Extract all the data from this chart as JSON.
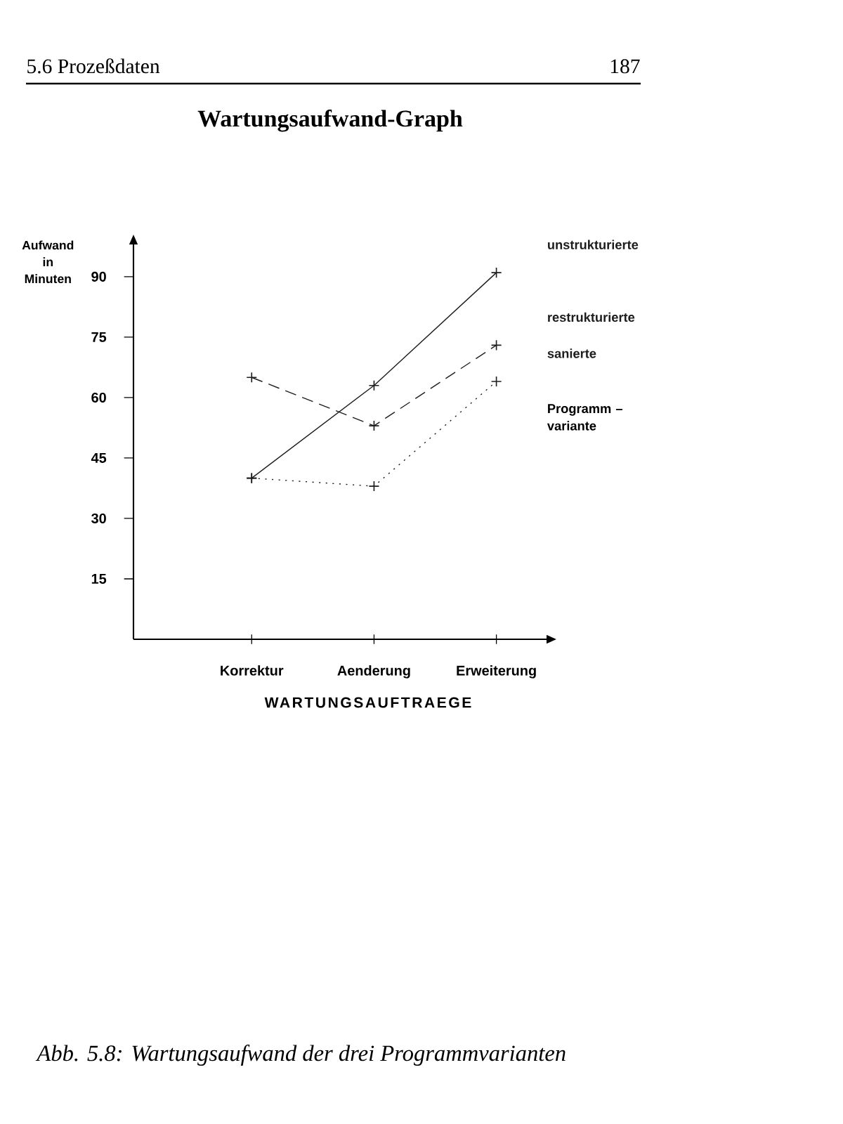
{
  "chart_data": {
    "type": "line",
    "title": "Wartungsaufwand-Graph",
    "xlabel": "WARTUNGSAUFTRAEGE",
    "ylabel": "Aufwand in Minuten",
    "legend_title": "Programm – variante",
    "categories": [
      "Korrektur",
      "Aenderung",
      "Erweiterung"
    ],
    "series": [
      {
        "name": "unstrukturierte",
        "color": "#1e1e1e",
        "line_style": "solid",
        "values": [
          40,
          63,
          91
        ]
      },
      {
        "name": "restrukturierte",
        "color": "#1e1e1e",
        "line_style": "dashed",
        "values": [
          65,
          53,
          73
        ]
      },
      {
        "name": "sanierte",
        "color": "#1e1e1e",
        "line_style": "dotted",
        "values": [
          40,
          38,
          64
        ]
      }
    ],
    "ylim": [
      0,
      98
    ],
    "yticks": [
      15,
      30,
      45,
      60,
      75,
      90
    ],
    "marker": "cross",
    "annotations": [
      "5.6 Prozeßdaten",
      "187",
      "Abb. 5.8: Wartungsaufwand der drei Programmvarianten"
    ]
  }
}
